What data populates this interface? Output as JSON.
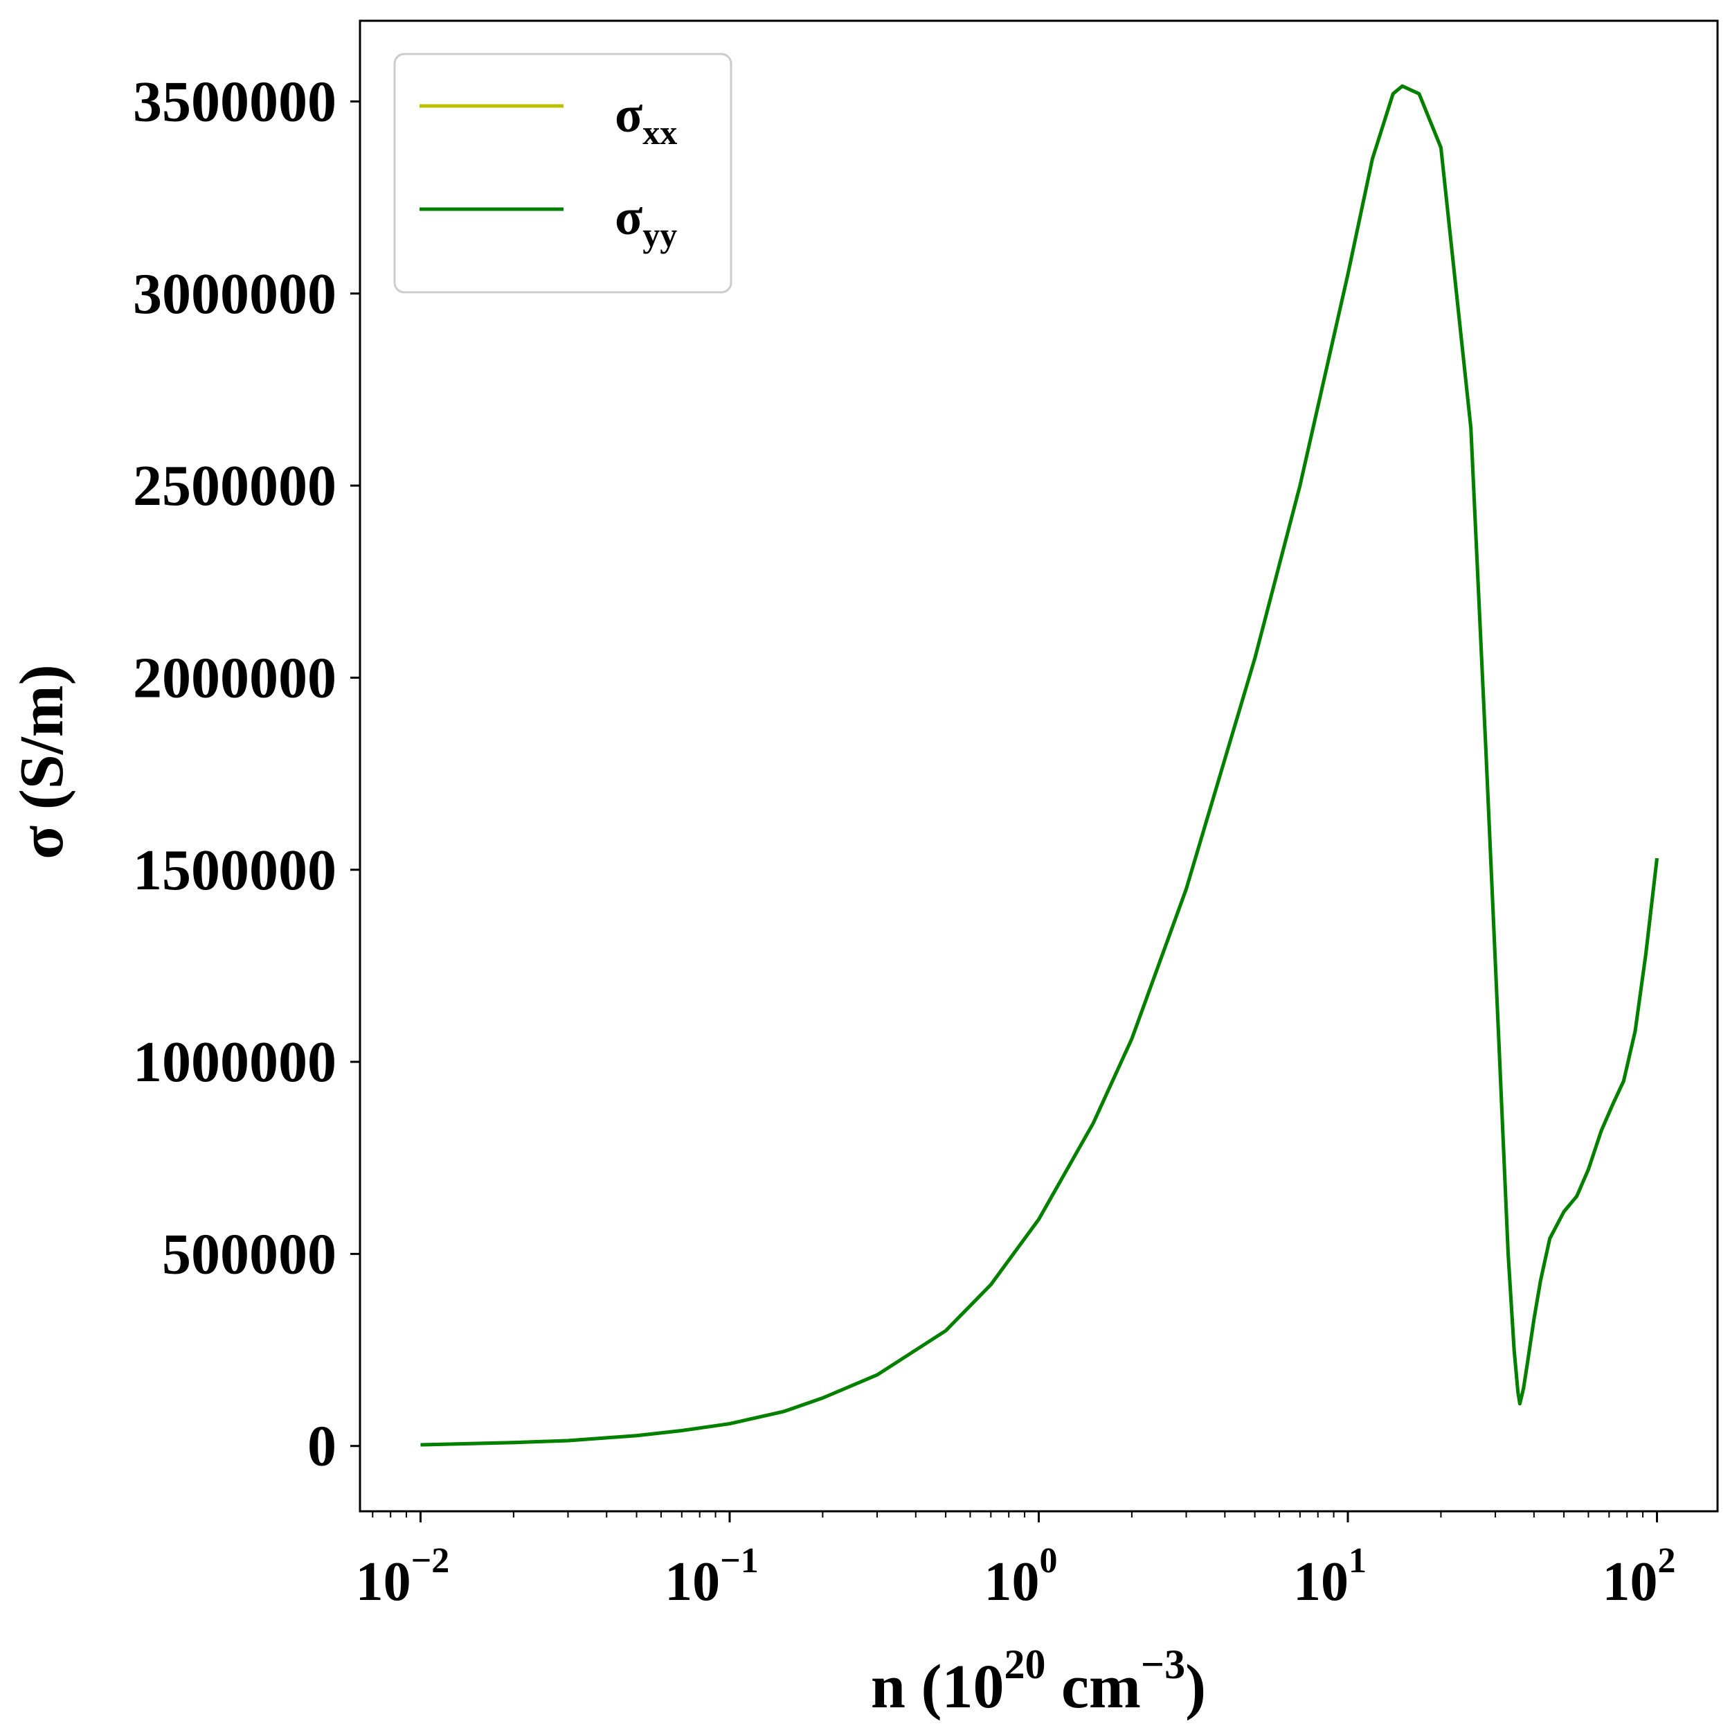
{
  "chart_data": {
    "type": "line",
    "xscale": "log",
    "xlim": [
      0.00637,
      157
    ],
    "ylim": [
      -170000,
      3710000
    ],
    "xlabel": {
      "base": "n (10",
      "sup1": "20",
      "mid": " cm",
      "sup2": "−3",
      "end": ")"
    },
    "ylabel": "σ (S/m)",
    "x_ticks": [
      {
        "value": 0.01,
        "base": "10",
        "exp": "−2"
      },
      {
        "value": 0.1,
        "base": "10",
        "exp": "−1"
      },
      {
        "value": 1,
        "base": "10",
        "exp": "0"
      },
      {
        "value": 10,
        "base": "10",
        "exp": "1"
      },
      {
        "value": 100,
        "base": "10",
        "exp": "2"
      }
    ],
    "y_ticks": [
      {
        "value": 0,
        "label": "0"
      },
      {
        "value": 500000,
        "label": "500000"
      },
      {
        "value": 1000000,
        "label": "1000000"
      },
      {
        "value": 1500000,
        "label": "1500000"
      },
      {
        "value": 2000000,
        "label": "2000000"
      },
      {
        "value": 2500000,
        "label": "2500000"
      },
      {
        "value": 3000000,
        "label": "3000000"
      },
      {
        "value": 3500000,
        "label": "3500000"
      }
    ],
    "legend_position": "top-left",
    "grid": false,
    "series": [
      {
        "name": "σxx",
        "symbol": "σ",
        "subscript": "xx",
        "color": "#bfbf00",
        "points": [
          [
            0.01,
            3000
          ],
          [
            0.02,
            9000
          ],
          [
            0.03,
            14000
          ],
          [
            0.05,
            27000
          ],
          [
            0.07,
            40000
          ],
          [
            0.1,
            58000
          ],
          [
            0.15,
            90000
          ],
          [
            0.2,
            125000
          ],
          [
            0.3,
            185000
          ],
          [
            0.5,
            300000
          ],
          [
            0.7,
            420000
          ],
          [
            1,
            590000
          ],
          [
            1.5,
            840000
          ],
          [
            2,
            1060000
          ],
          [
            3,
            1450000
          ],
          [
            5,
            2050000
          ],
          [
            7,
            2500000
          ],
          [
            10,
            3050000
          ],
          [
            12,
            3350000
          ],
          [
            14,
            3520000
          ],
          [
            15,
            3540000
          ],
          [
            17,
            3520000
          ],
          [
            20,
            3380000
          ],
          [
            25,
            2650000
          ],
          [
            28,
            1800000
          ],
          [
            31,
            1000000
          ],
          [
            33,
            500000
          ],
          [
            34.5,
            250000
          ],
          [
            35.5,
            140000
          ],
          [
            36,
            110000
          ],
          [
            37,
            150000
          ],
          [
            38,
            210000
          ],
          [
            40,
            330000
          ],
          [
            42,
            430000
          ],
          [
            45,
            540000
          ],
          [
            50,
            610000
          ],
          [
            55,
            650000
          ],
          [
            60,
            720000
          ],
          [
            66,
            820000
          ],
          [
            72,
            890000
          ],
          [
            78,
            950000
          ],
          [
            85,
            1080000
          ],
          [
            92,
            1280000
          ],
          [
            100,
            1530000
          ]
        ]
      },
      {
        "name": "σyy",
        "symbol": "σ",
        "subscript": "yy",
        "color": "#008000",
        "points": [
          [
            0.01,
            3000
          ],
          [
            0.02,
            9000
          ],
          [
            0.03,
            14000
          ],
          [
            0.05,
            27000
          ],
          [
            0.07,
            40000
          ],
          [
            0.1,
            58000
          ],
          [
            0.15,
            90000
          ],
          [
            0.2,
            125000
          ],
          [
            0.3,
            185000
          ],
          [
            0.5,
            300000
          ],
          [
            0.7,
            420000
          ],
          [
            1,
            590000
          ],
          [
            1.5,
            840000
          ],
          [
            2,
            1060000
          ],
          [
            3,
            1450000
          ],
          [
            5,
            2050000
          ],
          [
            7,
            2500000
          ],
          [
            10,
            3050000
          ],
          [
            12,
            3350000
          ],
          [
            14,
            3520000
          ],
          [
            15,
            3540000
          ],
          [
            17,
            3520000
          ],
          [
            20,
            3380000
          ],
          [
            25,
            2650000
          ],
          [
            28,
            1800000
          ],
          [
            31,
            1000000
          ],
          [
            33,
            500000
          ],
          [
            34.5,
            250000
          ],
          [
            35.5,
            140000
          ],
          [
            36,
            110000
          ],
          [
            37,
            150000
          ],
          [
            38,
            210000
          ],
          [
            40,
            330000
          ],
          [
            42,
            430000
          ],
          [
            45,
            540000
          ],
          [
            50,
            610000
          ],
          [
            55,
            650000
          ],
          [
            60,
            720000
          ],
          [
            66,
            820000
          ],
          [
            72,
            890000
          ],
          [
            78,
            950000
          ],
          [
            85,
            1080000
          ],
          [
            92,
            1280000
          ],
          [
            100,
            1530000
          ]
        ]
      }
    ]
  }
}
